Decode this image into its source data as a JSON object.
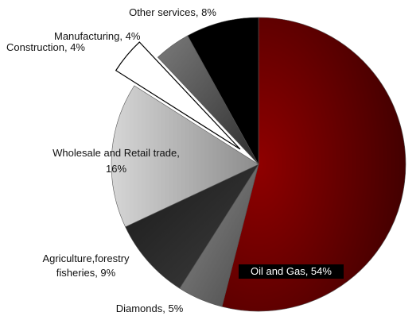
{
  "chart_data": {
    "type": "pie",
    "title": "",
    "slices": [
      {
        "label": "Oil and Gas",
        "value": 54,
        "label_text": "Oil and Gas, 54%",
        "color": "#7a0000"
      },
      {
        "label": "Diamonds",
        "value": 5,
        "label_text": "Diamonds, 5%",
        "color": "#6e6e6e"
      },
      {
        "label": "Agriculture,forestry fisheries",
        "value": 9,
        "label_text": [
          "Agriculture,forestry",
          "fisheries, 9%"
        ],
        "color": "#2a2a2a"
      },
      {
        "label": "Wholesale and Retail trade",
        "value": 16,
        "label_text": [
          "Wholesale and Retail trade,",
          "16%"
        ],
        "color": "#bdbdbd"
      },
      {
        "label": "Construction",
        "value": 4,
        "label_text": "Construction, 4%",
        "color": "#ffffff",
        "exploded": true
      },
      {
        "label": "Manufacturing",
        "value": 4,
        "label_text": "Manufacturing, 4%",
        "color": "#5a5a5a"
      },
      {
        "label": "Other services",
        "value": 8,
        "label_text": "Other services, 8%",
        "color": "#000000"
      }
    ]
  }
}
